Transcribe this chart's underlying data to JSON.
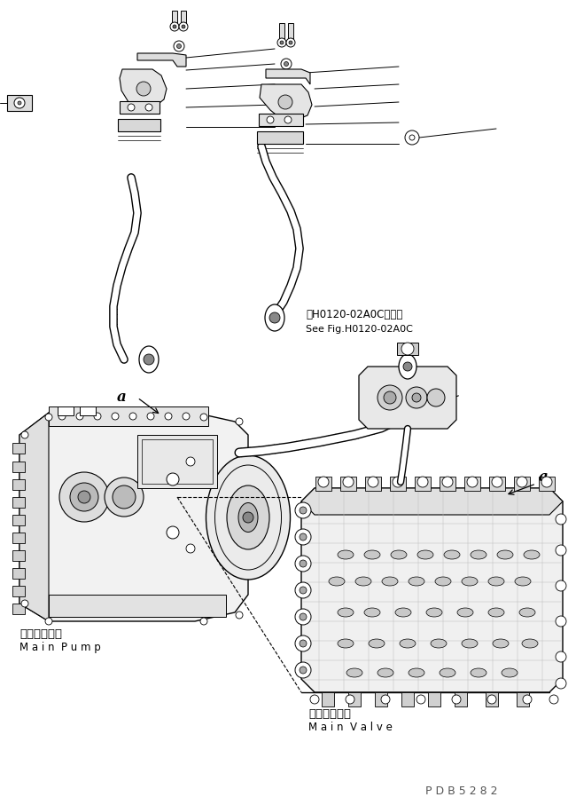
{
  "bg_color": "#ffffff",
  "line_color": "#000000",
  "fig_width": 6.5,
  "fig_height": 9.07,
  "dpi": 100,
  "part_id": "P D B 5 2 8 2",
  "ref_text_ja": "第H0120-02A0C図参照",
  "ref_text_en": "See Fig.H0120-02A0C",
  "label_pump_ja": "メインポンプ",
  "label_pump_en": "M a i n  P u m p",
  "label_valve_ja": "メインバルブ",
  "label_valve_en": "M a i n  V a l v e",
  "label_a": "a"
}
